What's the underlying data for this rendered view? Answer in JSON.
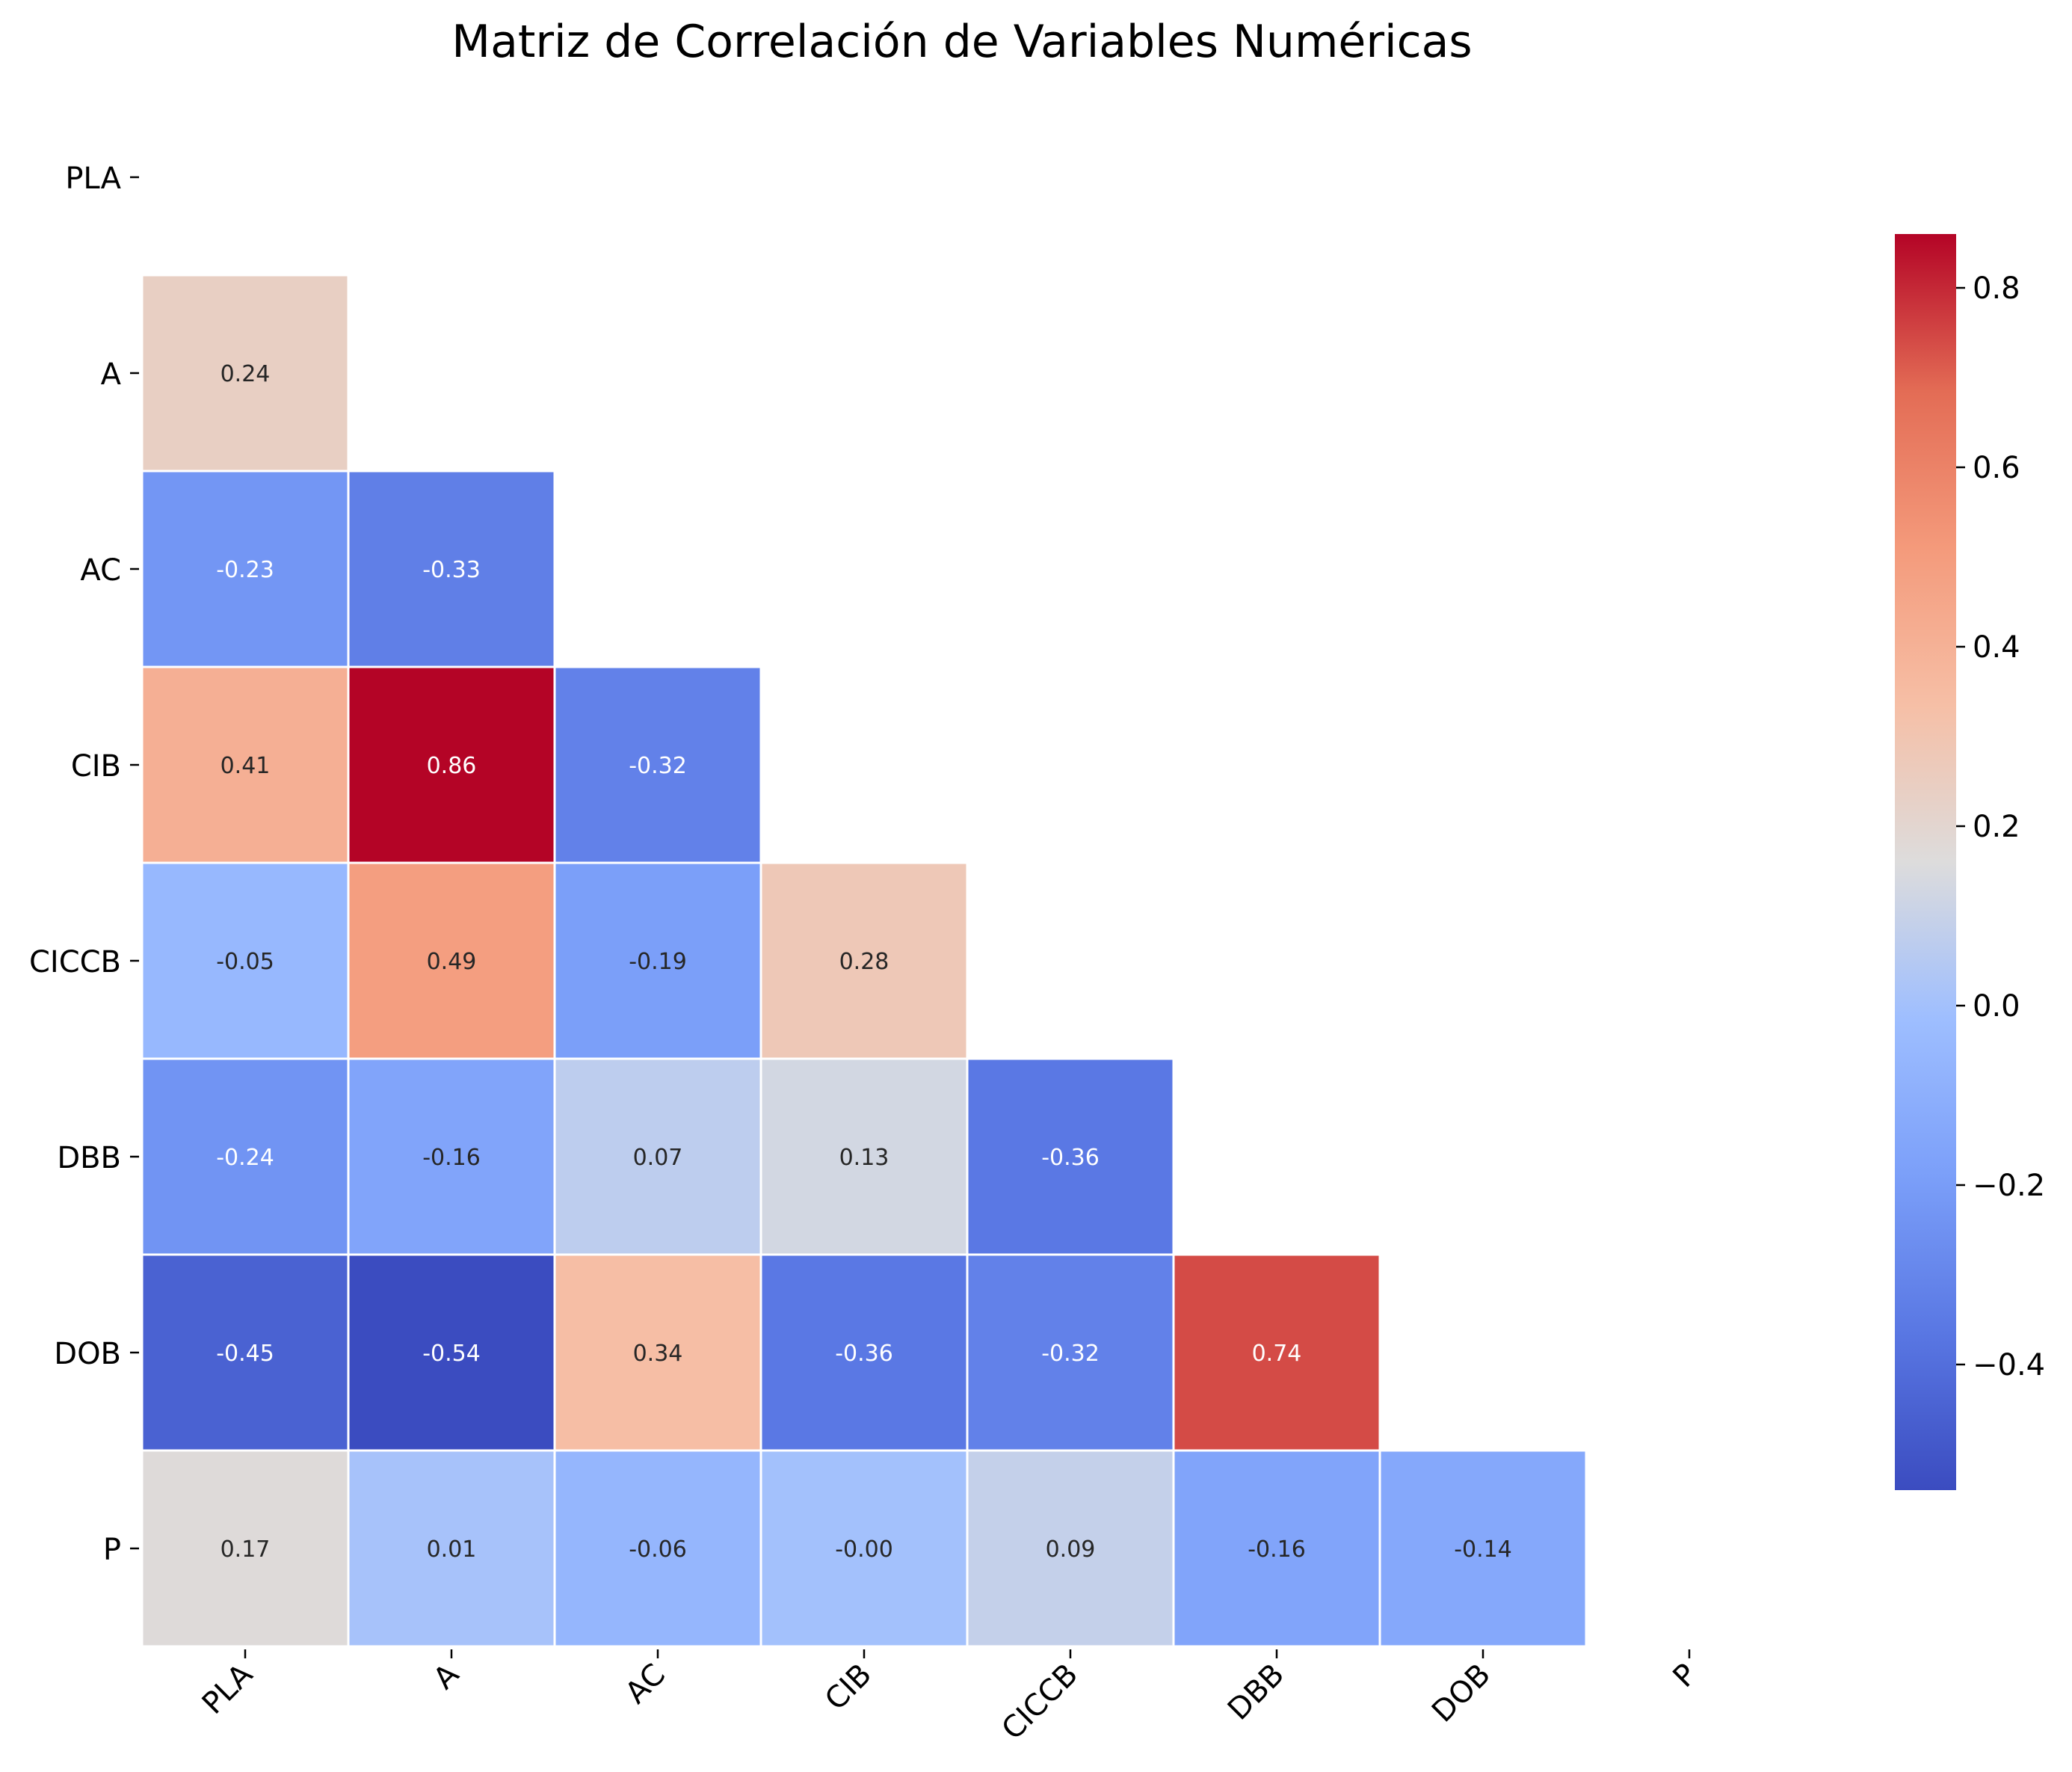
{
  "chart_data": {
    "type": "heatmap",
    "title": "Matriz de Correlación de Variables Numéricas",
    "xlabel": "",
    "ylabel": "",
    "row_labels": [
      "PLA",
      "A",
      "AC",
      "CIB",
      "CICCB",
      "DBB",
      "DOB",
      "P"
    ],
    "col_labels": [
      "PLA",
      "A",
      "AC",
      "CIB",
      "CICCB",
      "DBB",
      "DOB",
      "P"
    ],
    "mask": "upper triangle incl. diagonal",
    "values": [
      [
        null,
        null,
        null,
        null,
        null,
        null,
        null,
        null
      ],
      [
        0.24,
        null,
        null,
        null,
        null,
        null,
        null,
        null
      ],
      [
        -0.23,
        -0.33,
        null,
        null,
        null,
        null,
        null,
        null
      ],
      [
        0.41,
        0.86,
        -0.32,
        null,
        null,
        null,
        null,
        null
      ],
      [
        -0.05,
        0.49,
        -0.19,
        0.28,
        null,
        null,
        null,
        null
      ],
      [
        -0.24,
        -0.16,
        0.07,
        0.13,
        -0.36,
        null,
        null,
        null
      ],
      [
        -0.45,
        -0.54,
        0.34,
        -0.36,
        -0.32,
        0.74,
        null,
        null
      ],
      [
        0.17,
        0.01,
        -0.06,
        -0.0,
        0.09,
        -0.16,
        -0.14,
        null
      ]
    ],
    "value_labels": [
      [],
      [
        "0.24"
      ],
      [
        "-0.23",
        "-0.33"
      ],
      [
        "0.41",
        "0.86",
        "-0.32"
      ],
      [
        "-0.05",
        "0.49",
        "-0.19",
        "0.28"
      ],
      [
        "-0.24",
        "-0.16",
        "0.07",
        "0.13",
        "-0.36"
      ],
      [
        "-0.45",
        "-0.54",
        "0.34",
        "-0.36",
        "-0.32",
        "0.74"
      ],
      [
        "0.17",
        "0.01",
        "-0.06",
        "-0.00",
        "0.09",
        "-0.16",
        "-0.14"
      ]
    ],
    "colormap": "coolwarm",
    "colorbar": {
      "range": [
        -0.54,
        0.86
      ],
      "ticks": [
        0.8,
        0.6,
        0.4,
        0.2,
        0.0,
        -0.2,
        -0.4
      ],
      "tick_labels": [
        "0.8",
        "0.6",
        "0.4",
        "0.2",
        "0.0",
        "−0.2",
        "−0.4"
      ]
    },
    "grid": false,
    "legend": "colorbar-right"
  }
}
